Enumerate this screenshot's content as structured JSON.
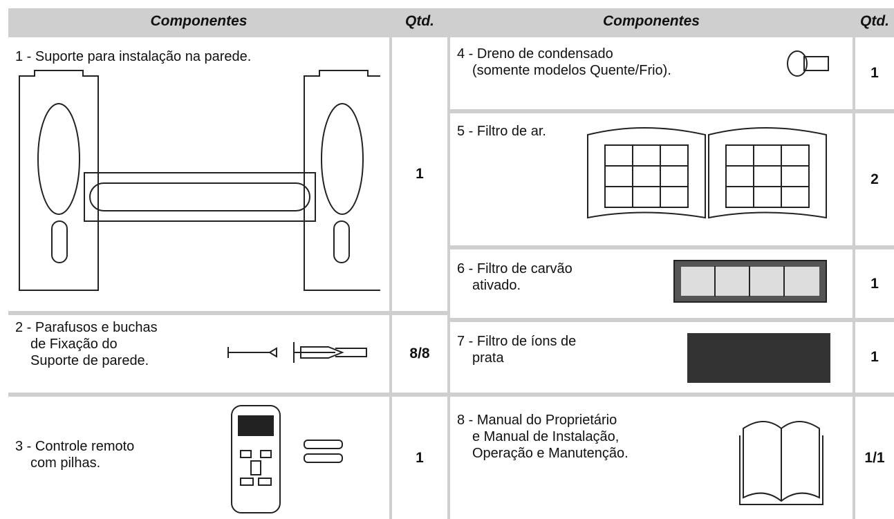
{
  "header": {
    "left": {
      "component": "Componentes",
      "qty": "Qtd."
    },
    "right": {
      "component": "Componentes",
      "qty": "Qtd."
    }
  },
  "left_rows": [
    {
      "lines": [
        "1 - Suporte para  instalação na parede."
      ],
      "qty": "1"
    },
    {
      "lines": [
        "2 - Parafusos e buchas",
        "de Fixação do",
        "Suporte de parede."
      ],
      "qty": "8/8"
    },
    {
      "lines": [
        "3 - Controle remoto",
        "com pilhas."
      ],
      "qty": "1"
    }
  ],
  "right_rows": [
    {
      "lines": [
        "4 - Dreno de condensado",
        "(somente modelos Quente/Frio)."
      ],
      "qty": "1"
    },
    {
      "lines": [
        "5 - Filtro de ar."
      ],
      "qty": "2"
    },
    {
      "lines": [
        "6 - Filtro de carvão",
        "ativado."
      ],
      "qty": "1"
    },
    {
      "lines": [
        "7 - Filtro de íons de",
        "prata"
      ],
      "qty": "1"
    },
    {
      "lines": [
        "8 - Manual do Proprietário",
        "e Manual de Instalação,",
        "Operação e Manutenção."
      ],
      "qty": "1/1"
    }
  ]
}
